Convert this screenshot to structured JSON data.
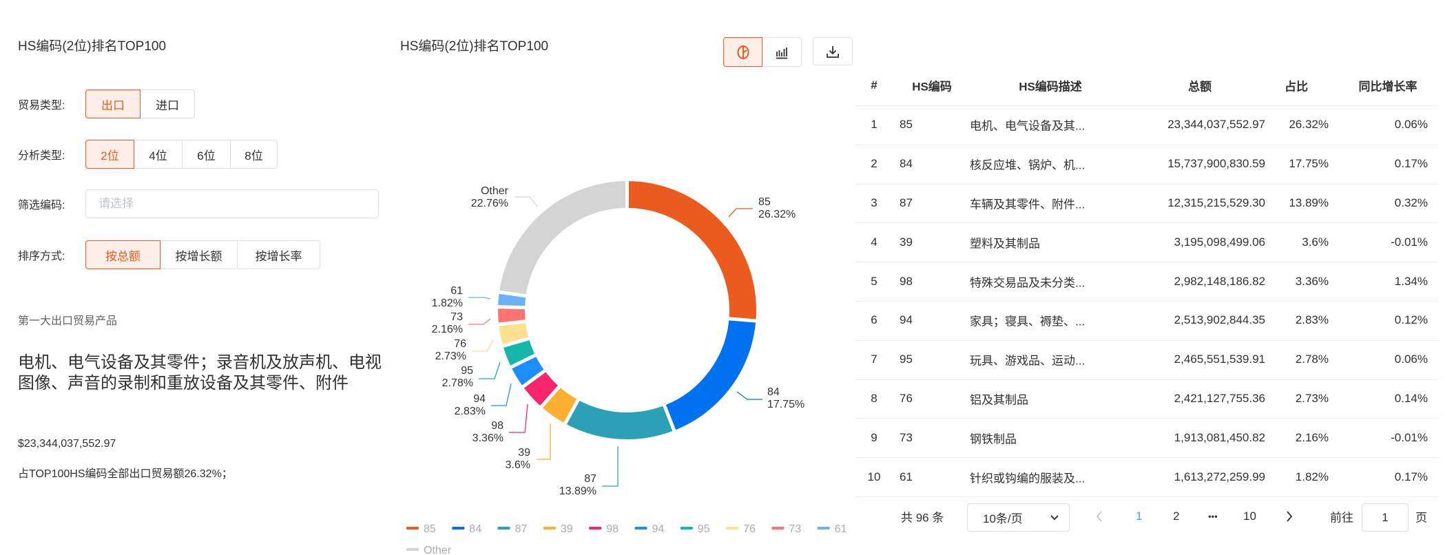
{
  "left": {
    "title": "HS编码(2位)排名TOP100",
    "trade_type": {
      "label": "贸易类型:",
      "options": [
        "出口",
        "进口"
      ],
      "selected": 0
    },
    "analysis_type": {
      "label": "分析类型:",
      "options": [
        "2位",
        "4位",
        "6位",
        "8位"
      ],
      "selected": 0
    },
    "filter": {
      "label": "筛选编码:",
      "placeholder": "请选择",
      "value": ""
    },
    "sort": {
      "label": "排序方式:",
      "options": [
        "按总额",
        "按增长额",
        "按增长率"
      ],
      "selected": 0
    },
    "top_product": {
      "caption": "第一大出口贸易产品",
      "name": "电机、电气设备及其零件；录音机及放声机、电视图像、声音的录制和重放设备及其零件、附件",
      "amount": "$23,344,037,552.97",
      "share_text": "占TOP100HS编码全部出口贸易额26.32%；"
    }
  },
  "chart_panel": {
    "title": "HS编码(2位)排名TOP100",
    "view_toggle": {
      "pie_icon": "pie-chart-icon",
      "bar_icon": "bar-chart-icon",
      "selected": "pie"
    },
    "download_icon": "download-icon"
  },
  "chart_data": {
    "type": "pie",
    "variant": "donut",
    "categories": [
      "85",
      "84",
      "87",
      "39",
      "98",
      "94",
      "95",
      "76",
      "73",
      "61",
      "Other"
    ],
    "values": [
      26.32,
      17.75,
      13.89,
      3.6,
      3.36,
      2.83,
      2.78,
      2.73,
      2.16,
      1.82,
      22.76
    ],
    "labels": [
      "26.32%",
      "17.75%",
      "13.89%",
      "3.6%",
      "3.36%",
      "2.83%",
      "2.78%",
      "2.73%",
      "2.16%",
      "1.82%",
      "22.76%"
    ],
    "colors": [
      "#eb5a1e",
      "#0072ef",
      "#2ba0b6",
      "#fcb032",
      "#f5266b",
      "#1d8ef9",
      "#14b7a9",
      "#ffe08f",
      "#ff7373",
      "#6ab0f5",
      "#d4d4d4"
    ],
    "legend_position": "bottom"
  },
  "table": {
    "headers": [
      "#",
      "HS编码",
      "HS编码描述",
      "总额",
      "占比",
      "同比增长率"
    ],
    "rows": [
      [
        "1",
        "85",
        "电机、电气设备及其...",
        "23,344,037,552.97",
        "26.32%",
        "0.06%"
      ],
      [
        "2",
        "84",
        "核反应堆、锅炉、机...",
        "15,737,900,830.59",
        "17.75%",
        "0.17%"
      ],
      [
        "3",
        "87",
        "车辆及其零件、附件...",
        "12,315,215,529.30",
        "13.89%",
        "0.32%"
      ],
      [
        "4",
        "39",
        "塑料及其制品",
        "3,195,098,499.06",
        "3.6%",
        "-0.01%"
      ],
      [
        "5",
        "98",
        "特殊交易品及未分类...",
        "2,982,148,186.82",
        "3.36%",
        "1.34%"
      ],
      [
        "6",
        "94",
        "家具；寝具、褥垫、...",
        "2,513,902,844.35",
        "2.83%",
        "0.12%"
      ],
      [
        "7",
        "95",
        "玩具、游戏品、运动...",
        "2,465,551,539.91",
        "2.78%",
        "0.06%"
      ],
      [
        "8",
        "76",
        "铝及其制品",
        "2,421,127,755.36",
        "2.73%",
        "0.14%"
      ],
      [
        "9",
        "73",
        "钢铁制品",
        "1,913,081,450.82",
        "2.16%",
        "-0.01%"
      ],
      [
        "10",
        "61",
        "针织或钩编的服装及...",
        "1,613,272,259.99",
        "1.82%",
        "0.17%"
      ]
    ]
  },
  "pagination": {
    "total": "共 96 条",
    "page_size": "10条/页",
    "pages": [
      "1",
      "2",
      "•••",
      "10"
    ],
    "current": "1",
    "goto_label": "前往",
    "goto_value": "1",
    "goto_suffix": "页",
    "active_color": "#409eff"
  }
}
